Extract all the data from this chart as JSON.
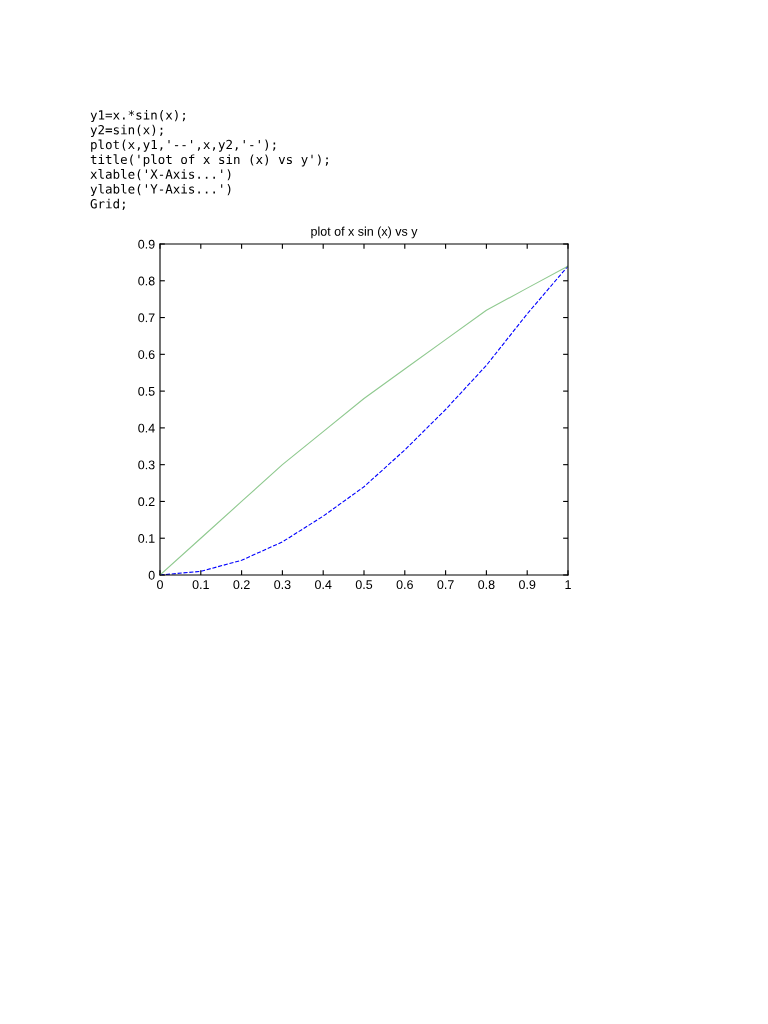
{
  "chart_data": {
    "type": "line",
    "title": "plot of x sin (x) vs y",
    "annotations": [
      "y1=x.*sin(x);",
      "y2=sin(x);",
      "plot(x,y1,'--',x,y2,'-');",
      "title('plot of x sin (x) vs y');",
      "xlable('X-Axis...')",
      "ylable('Y-Axis...')",
      "Grid;"
    ],
    "x": [
      0,
      0.1,
      0.2,
      0.3,
      0.4,
      0.5,
      0.6,
      0.7,
      0.8,
      0.9,
      1
    ],
    "series": [
      {
        "color": "#0000ff",
        "line_style": "dashed",
        "values": [
          0,
          0.01,
          0.04,
          0.09,
          0.16,
          0.24,
          0.34,
          0.45,
          0.57,
          0.71,
          0.84
        ]
      },
      {
        "color": "#8fc98f",
        "line_style": "solid",
        "values": [
          0,
          0.1,
          0.2,
          0.3,
          0.39,
          0.48,
          0.56,
          0.64,
          0.72,
          0.78,
          0.84
        ]
      }
    ],
    "xlim": [
      0,
      1
    ],
    "xticks": [
      0,
      0.1,
      0.2,
      0.3,
      0.4,
      0.5,
      0.6,
      0.7,
      0.8,
      0.9,
      1
    ],
    "ylim": [
      0,
      0.9
    ],
    "yticks": [
      0,
      0.1,
      0.2,
      0.3,
      0.4,
      0.5,
      0.6,
      0.7,
      0.8,
      0.9
    ],
    "grid": false,
    "legend": false,
    "marker": "none"
  }
}
